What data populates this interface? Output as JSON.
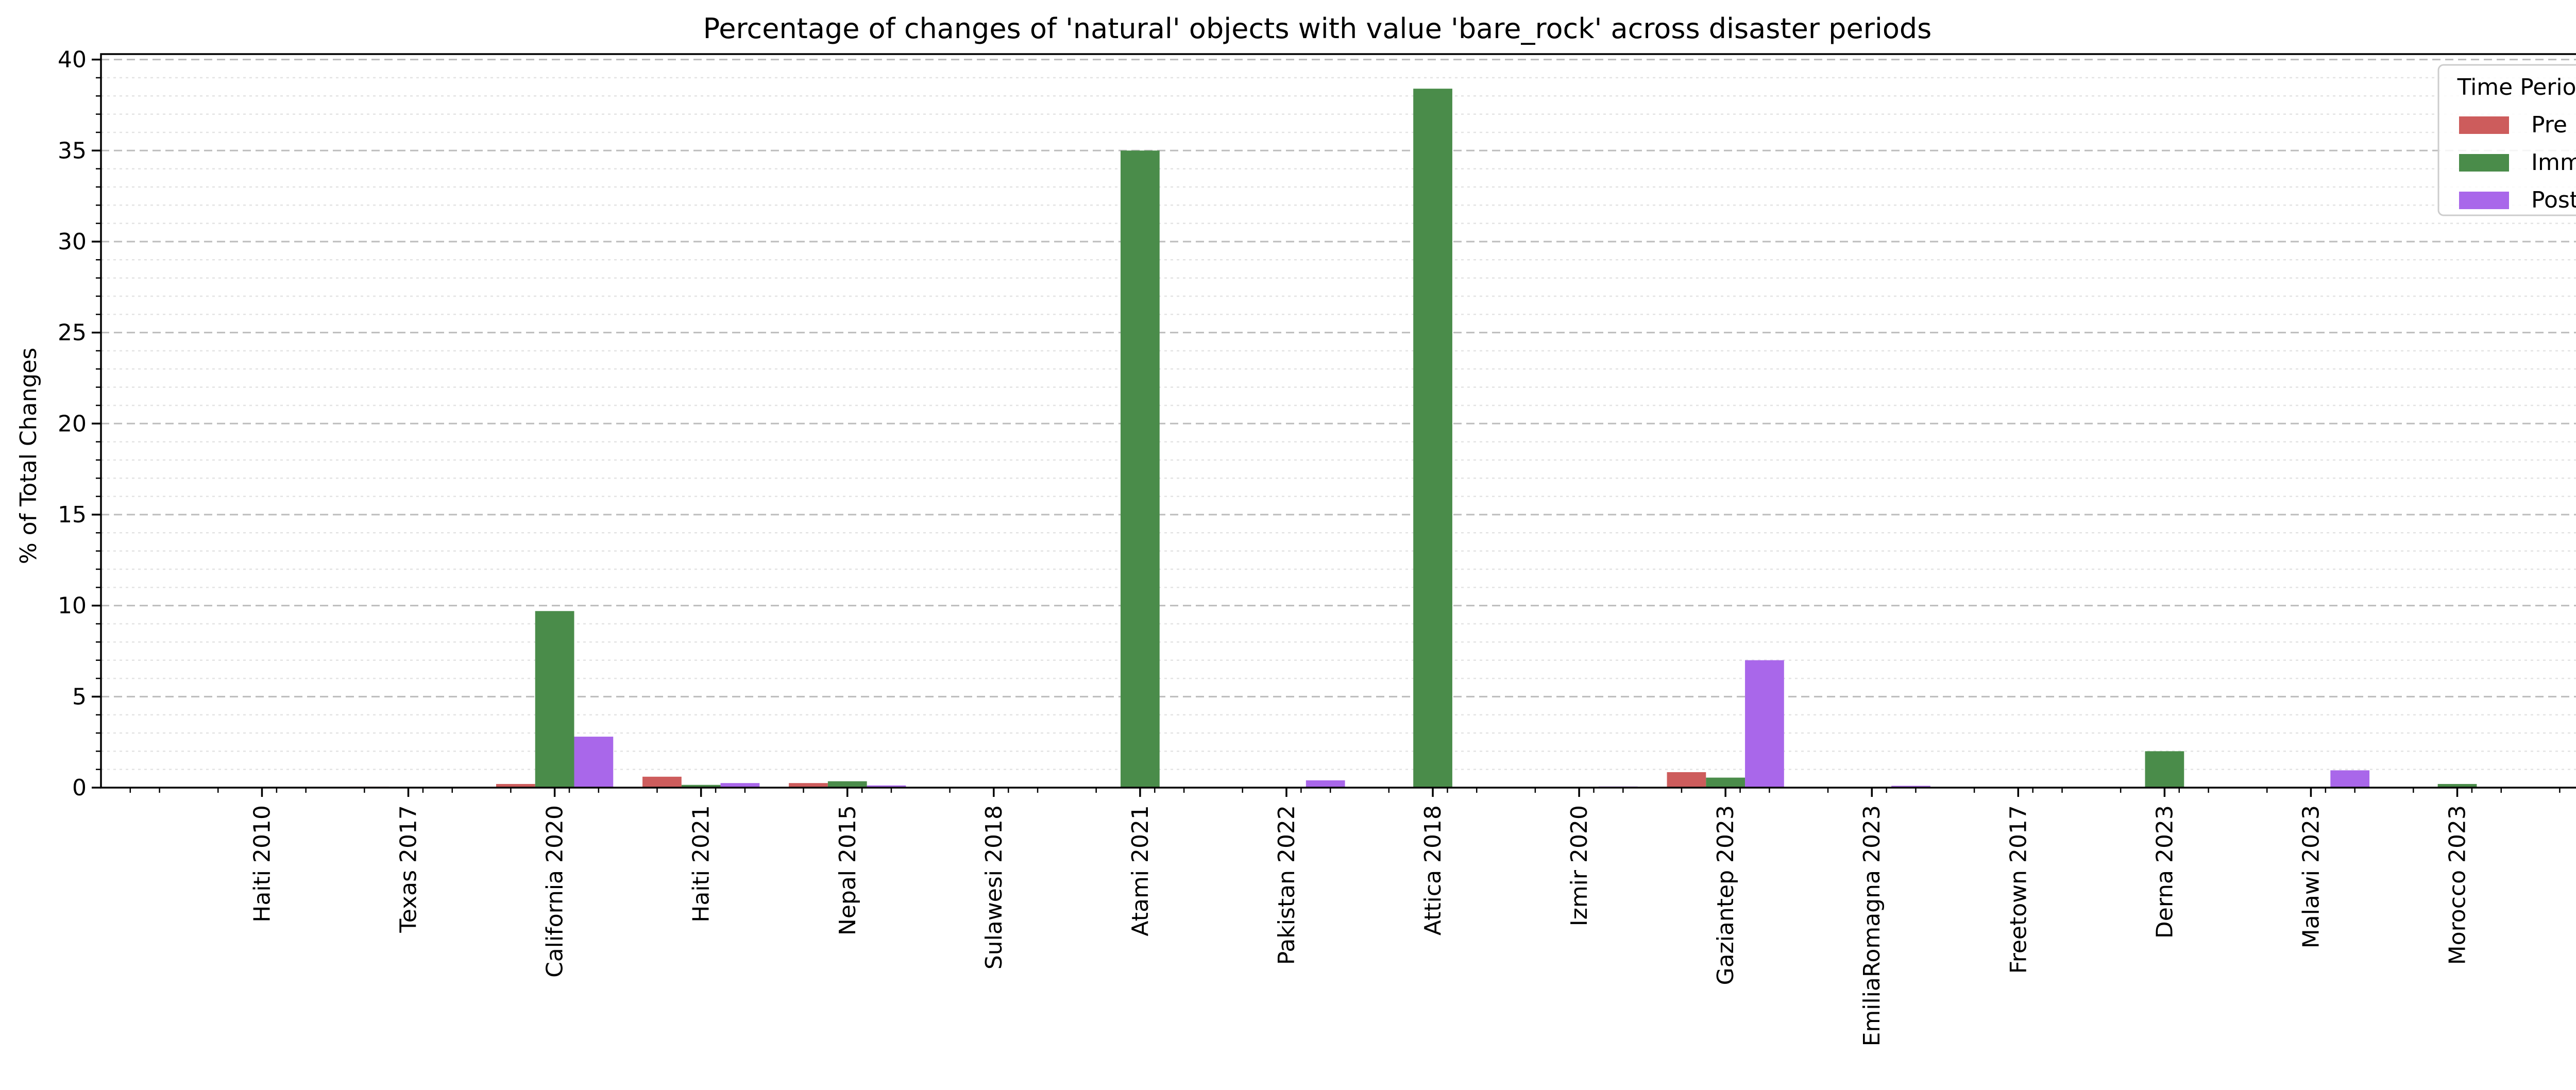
{
  "chart_data": {
    "type": "bar",
    "title": "Percentage of changes of 'natural' objects with value 'bare_rock' across disaster periods",
    "xlabel": "",
    "ylabel": "% of Total Changes",
    "ylim": [
      0,
      40.3
    ],
    "yticks": [
      0,
      5,
      10,
      15,
      20,
      25,
      30,
      35,
      40
    ],
    "grid": true,
    "legend": {
      "title": "Time Period",
      "position": "top-right"
    },
    "categories": [
      "Haiti 2010",
      "Texas 2017",
      "California 2020",
      "Haiti 2021",
      "Nepal 2015",
      "Sulawesi 2018",
      "Atami 2021",
      "Pakistan 2022",
      "Attica 2018",
      "Izmir 2020",
      "Gaziantep 2023",
      "EmiliaRomagna 2023",
      "Freetown 2017",
      "Derna 2023",
      "Malawi 2023",
      "Morocco 2023"
    ],
    "series": [
      {
        "name": "Pre",
        "color": "#cd5c5c",
        "values": [
          0,
          0.05,
          0.2,
          0.6,
          0.25,
          0,
          0,
          0,
          0,
          0,
          0.85,
          0.03,
          0,
          0,
          0,
          0
        ]
      },
      {
        "name": "Imm",
        "color": "#4a8c4a",
        "values": [
          0,
          0,
          9.7,
          0.15,
          0.35,
          0,
          35.0,
          0,
          38.4,
          0,
          0.55,
          0,
          0,
          2.0,
          0,
          0.2
        ]
      },
      {
        "name": "Post",
        "color": "#a967ea",
        "values": [
          0,
          0,
          2.8,
          0.25,
          0.12,
          0,
          0,
          0.4,
          0,
          0.06,
          7.0,
          0.1,
          0,
          0,
          0.95,
          0
        ]
      }
    ]
  }
}
